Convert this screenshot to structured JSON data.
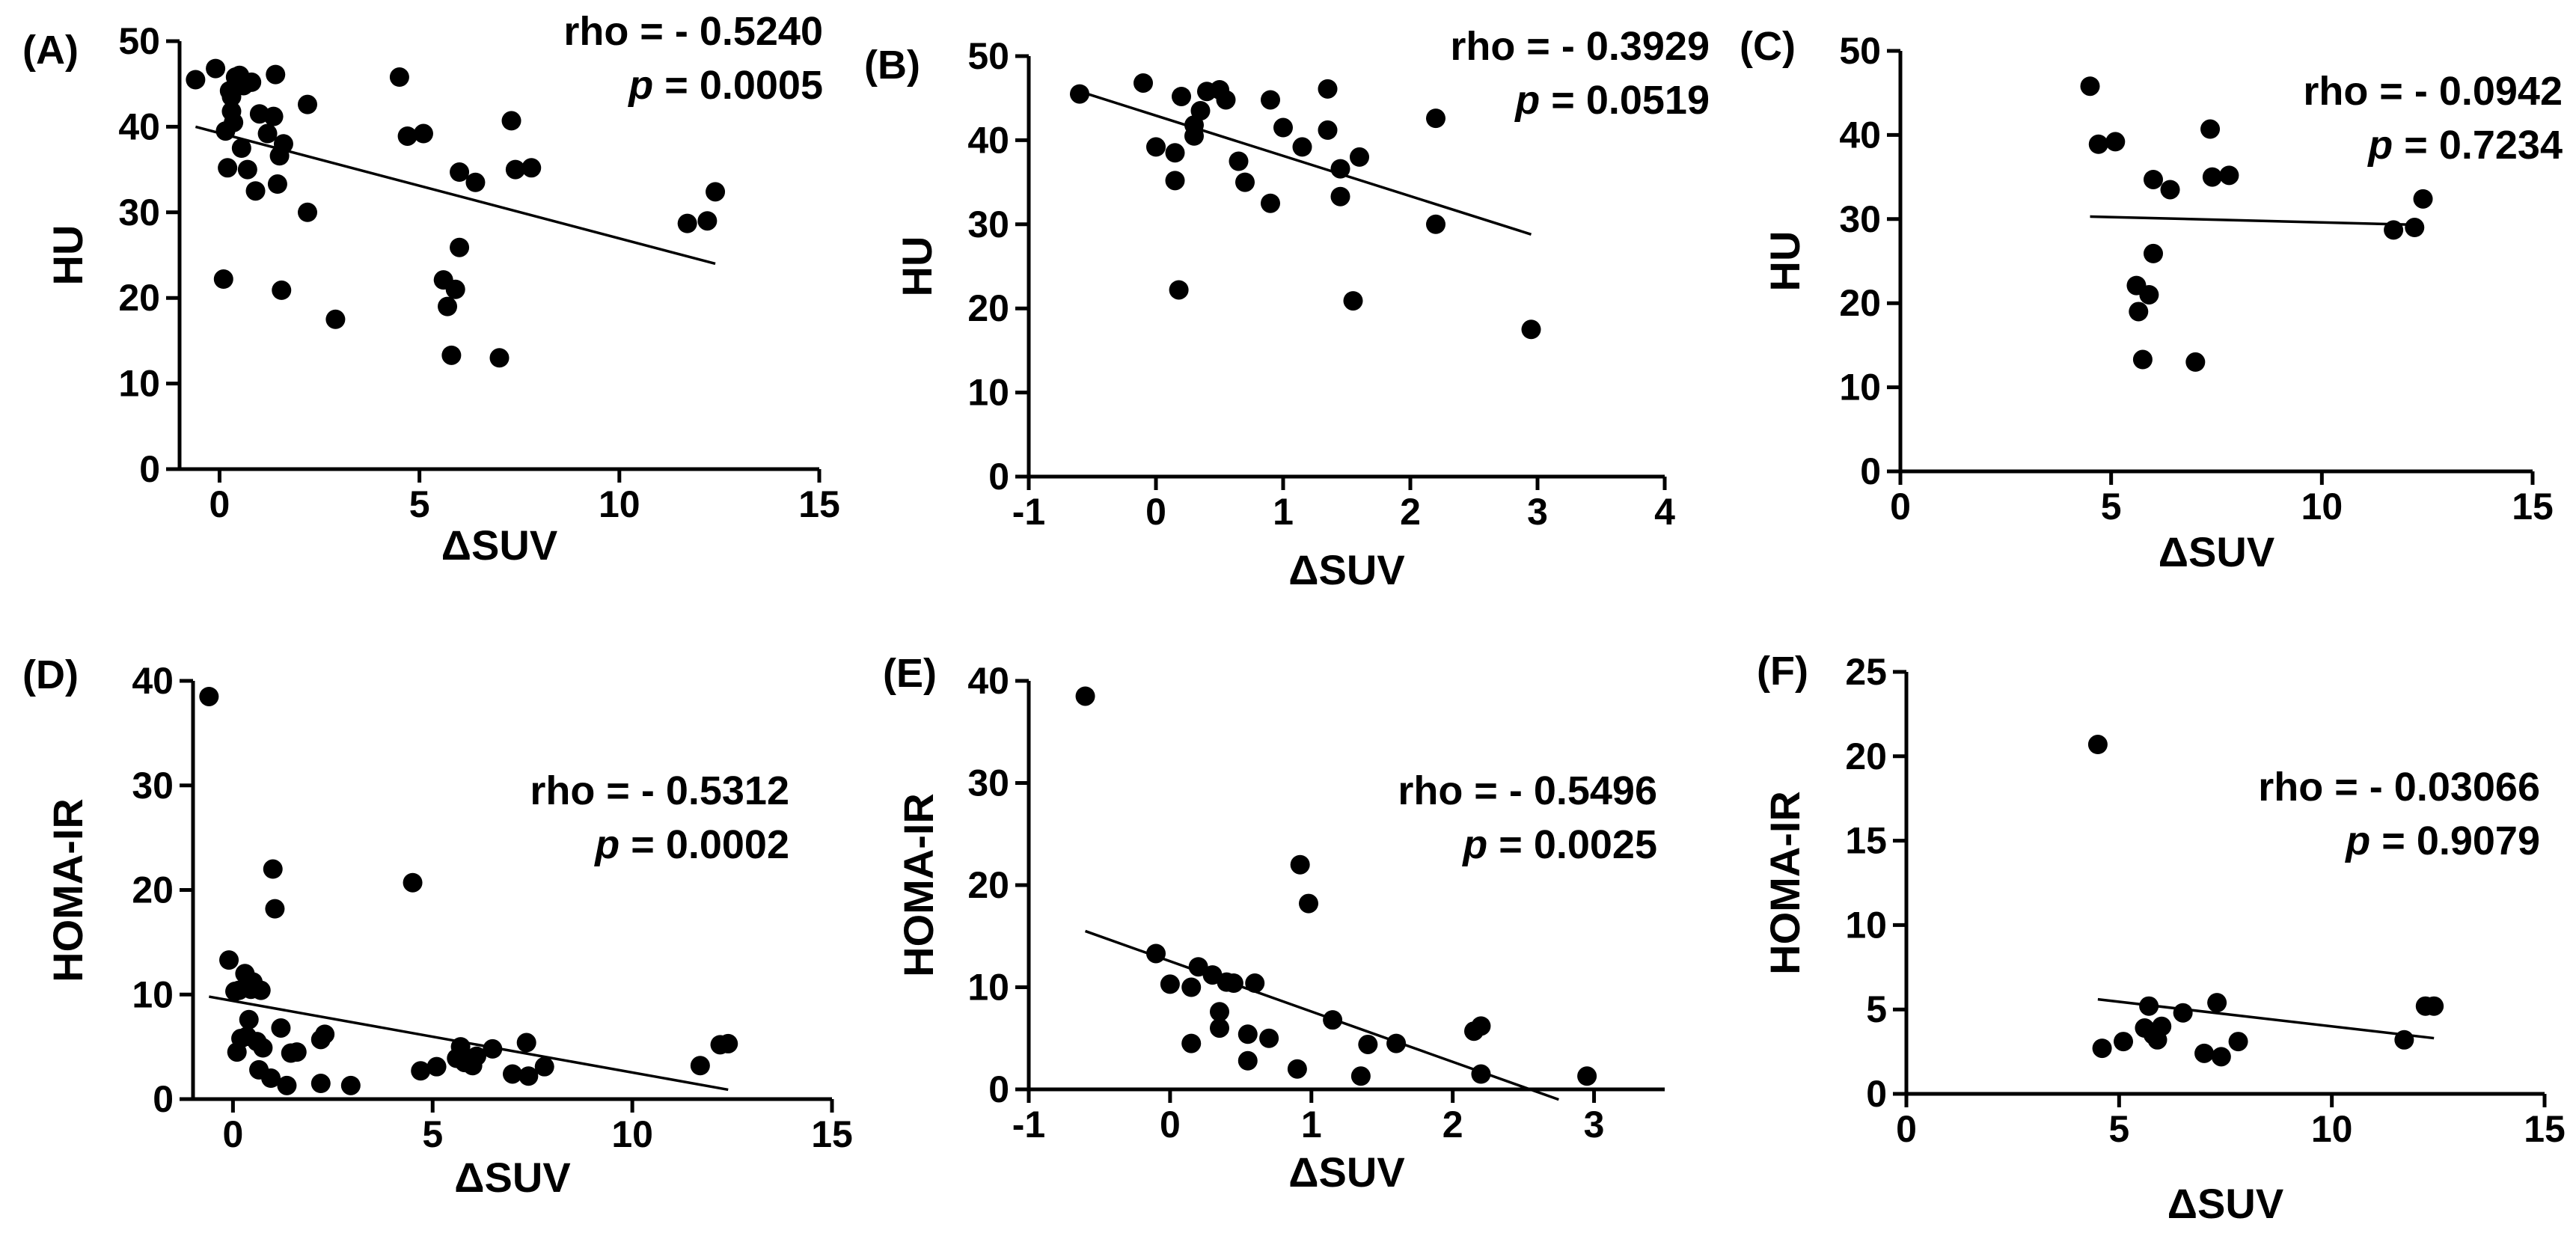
{
  "figure": {
    "colors": {
      "ink": "#000000",
      "background": "#ffffff"
    }
  },
  "chart_data": [
    {
      "panel": "(A)",
      "type": "scatter",
      "xlabel": "ΔSUV",
      "ylabel": "HU",
      "xlim": [
        -1,
        15
      ],
      "ylim": [
        0,
        50
      ],
      "xticks": [
        0,
        5,
        10,
        15
      ],
      "yticks": [
        0,
        10,
        20,
        30,
        40,
        50
      ],
      "stats": [
        "rho = - 0.5240",
        "p = 0.0005"
      ],
      "points": [
        [
          -0.6,
          45.5
        ],
        [
          -0.1,
          46.8
        ],
        [
          0.1,
          22.2
        ],
        [
          0.15,
          39.5
        ],
        [
          0.2,
          35.2
        ],
        [
          0.25,
          44.2
        ],
        [
          0.3,
          43.5
        ],
        [
          0.3,
          41.8
        ],
        [
          0.35,
          40.5
        ],
        [
          0.4,
          45.8
        ],
        [
          0.5,
          46.0
        ],
        [
          0.55,
          37.5
        ],
        [
          0.6,
          44.8
        ],
        [
          0.7,
          35.0
        ],
        [
          0.8,
          45.2
        ],
        [
          0.9,
          32.5
        ],
        [
          1.0,
          41.5
        ],
        [
          1.2,
          39.2
        ],
        [
          1.35,
          41.2
        ],
        [
          1.4,
          46.1
        ],
        [
          1.45,
          33.3
        ],
        [
          1.5,
          36.6
        ],
        [
          1.55,
          20.9
        ],
        [
          1.6,
          38.0
        ],
        [
          2.2,
          30.0
        ],
        [
          2.2,
          42.6
        ],
        [
          2.9,
          17.5
        ],
        [
          4.5,
          45.8
        ],
        [
          4.7,
          38.9
        ],
        [
          5.1,
          39.2
        ],
        [
          5.6,
          22.1
        ],
        [
          5.7,
          19.0
        ],
        [
          5.8,
          13.3
        ],
        [
          5.9,
          21.0
        ],
        [
          6.0,
          25.9
        ],
        [
          6.0,
          34.7
        ],
        [
          6.4,
          33.5
        ],
        [
          7.0,
          13.0
        ],
        [
          7.3,
          40.7
        ],
        [
          7.4,
          35.0
        ],
        [
          7.8,
          35.2
        ],
        [
          11.7,
          28.7
        ],
        [
          12.2,
          29.0
        ],
        [
          12.4,
          32.4
        ]
      ],
      "fit": {
        "x": [
          -0.6,
          12.4
        ],
        "y": [
          40.0,
          24.0
        ]
      }
    },
    {
      "panel": "(B)",
      "type": "scatter",
      "xlabel": "ΔSUV",
      "ylabel": "HU",
      "xlim": [
        -1,
        4
      ],
      "ylim": [
        0,
        50
      ],
      "xticks": [
        -1,
        0,
        1,
        2,
        3,
        4
      ],
      "yticks": [
        0,
        10,
        20,
        30,
        40,
        50
      ],
      "stats": [
        "rho = - 0.3929",
        "p = 0.0519"
      ],
      "points": [
        [
          -0.6,
          45.5
        ],
        [
          -0.1,
          46.8
        ],
        [
          0.0,
          39.2
        ],
        [
          0.15,
          38.5
        ],
        [
          0.15,
          35.2
        ],
        [
          0.18,
          22.2
        ],
        [
          0.2,
          45.2
        ],
        [
          0.3,
          41.8
        ],
        [
          0.3,
          40.5
        ],
        [
          0.35,
          43.5
        ],
        [
          0.4,
          45.8
        ],
        [
          0.5,
          46.0
        ],
        [
          0.55,
          44.8
        ],
        [
          0.65,
          37.5
        ],
        [
          0.7,
          35.0
        ],
        [
          0.9,
          44.8
        ],
        [
          0.9,
          32.5
        ],
        [
          1.0,
          41.5
        ],
        [
          1.15,
          39.2
        ],
        [
          1.35,
          46.1
        ],
        [
          1.35,
          41.2
        ],
        [
          1.45,
          33.3
        ],
        [
          1.45,
          36.6
        ],
        [
          1.55,
          20.9
        ],
        [
          1.6,
          38.0
        ],
        [
          2.2,
          30.0
        ],
        [
          2.2,
          42.6
        ],
        [
          2.95,
          17.5
        ]
      ],
      "fit": {
        "x": [
          -0.6,
          2.95
        ],
        "y": [
          45.8,
          28.8
        ]
      }
    },
    {
      "panel": "(C)",
      "type": "scatter",
      "xlabel": "ΔSUV",
      "ylabel": "HU",
      "xlim": [
        0,
        15
      ],
      "ylim": [
        0,
        50
      ],
      "xticks": [
        0,
        5,
        10,
        15
      ],
      "yticks": [
        0,
        10,
        20,
        30,
        40,
        50
      ],
      "stats": [
        "rho = - 0.0942",
        "p = 0.7234"
      ],
      "points": [
        [
          4.5,
          45.8
        ],
        [
          4.7,
          38.9
        ],
        [
          5.1,
          39.2
        ],
        [
          5.6,
          22.1
        ],
        [
          5.65,
          19.0
        ],
        [
          5.75,
          13.3
        ],
        [
          5.9,
          21.0
        ],
        [
          6.0,
          25.9
        ],
        [
          6.0,
          34.7
        ],
        [
          6.4,
          33.5
        ],
        [
          7.0,
          13.0
        ],
        [
          7.35,
          40.7
        ],
        [
          7.4,
          35.0
        ],
        [
          7.8,
          35.2
        ],
        [
          11.7,
          28.7
        ],
        [
          12.2,
          29.0
        ],
        [
          12.4,
          32.4
        ]
      ],
      "fit": {
        "x": [
          4.5,
          12.4
        ],
        "y": [
          30.3,
          29.3
        ]
      }
    },
    {
      "panel": "(D)",
      "type": "scatter",
      "xlabel": "ΔSUV",
      "ylabel": "HOMA-IR",
      "xlim": [
        -1,
        15
      ],
      "ylim": [
        0,
        40
      ],
      "xticks": [
        0,
        5,
        10,
        15
      ],
      "yticks": [
        0,
        10,
        20,
        30,
        40
      ],
      "stats": [
        "rho = - 0.5312",
        "p = 0.0002"
      ],
      "points": [
        [
          -0.6,
          38.5
        ],
        [
          -0.1,
          13.3
        ],
        [
          0.05,
          10.3
        ],
        [
          0.1,
          4.5
        ],
        [
          0.15,
          10.4
        ],
        [
          0.2,
          5.8
        ],
        [
          0.3,
          12.0
        ],
        [
          0.35,
          6.0
        ],
        [
          0.4,
          7.6
        ],
        [
          0.45,
          10.5
        ],
        [
          0.5,
          11.2
        ],
        [
          0.6,
          5.5
        ],
        [
          0.65,
          2.8
        ],
        [
          0.7,
          10.4
        ],
        [
          0.75,
          4.9
        ],
        [
          0.95,
          2.0
        ],
        [
          1.0,
          22.0
        ],
        [
          1.05,
          18.2
        ],
        [
          1.2,
          6.8
        ],
        [
          1.35,
          1.3
        ],
        [
          1.45,
          4.4
        ],
        [
          1.6,
          4.5
        ],
        [
          2.2,
          5.7
        ],
        [
          2.2,
          1.5
        ],
        [
          2.3,
          6.2
        ],
        [
          2.95,
          1.3
        ],
        [
          4.5,
          20.7
        ],
        [
          4.7,
          2.7
        ],
        [
          5.1,
          3.1
        ],
        [
          5.6,
          3.9
        ],
        [
          5.7,
          5.0
        ],
        [
          5.8,
          3.5
        ],
        [
          6.0,
          3.2
        ],
        [
          6.1,
          4.1
        ],
        [
          6.5,
          4.8
        ],
        [
          7.0,
          2.4
        ],
        [
          7.35,
          5.4
        ],
        [
          7.4,
          2.2
        ],
        [
          7.8,
          3.1
        ],
        [
          11.7,
          3.2
        ],
        [
          12.2,
          5.2
        ],
        [
          12.4,
          5.3
        ]
      ],
      "fit": {
        "x": [
          -0.6,
          12.4
        ],
        "y": [
          9.8,
          0.9
        ]
      }
    },
    {
      "panel": "(E)",
      "type": "scatter",
      "xlabel": "ΔSUV",
      "ylabel": "HOMA-IR",
      "xlim": [
        -1,
        3.5
      ],
      "ylim": [
        0,
        40
      ],
      "xticks": [
        -1,
        0,
        1,
        2,
        3
      ],
      "yticks": [
        0,
        10,
        20,
        30,
        40
      ],
      "stats": [
        "rho = - 0.5496",
        "p = 0.0025"
      ],
      "points": [
        [
          -0.6,
          38.5
        ],
        [
          -0.1,
          13.3
        ],
        [
          0.0,
          10.3
        ],
        [
          0.15,
          4.5
        ],
        [
          0.15,
          10.0
        ],
        [
          0.2,
          12.0
        ],
        [
          0.3,
          11.2
        ],
        [
          0.35,
          6.0
        ],
        [
          0.35,
          7.6
        ],
        [
          0.4,
          10.5
        ],
        [
          0.45,
          10.4
        ],
        [
          0.55,
          5.4
        ],
        [
          0.55,
          2.8
        ],
        [
          0.6,
          10.4
        ],
        [
          0.7,
          5.0
        ],
        [
          0.9,
          2.0
        ],
        [
          0.92,
          22.0
        ],
        [
          0.98,
          18.2
        ],
        [
          1.15,
          6.8
        ],
        [
          1.35,
          1.3
        ],
        [
          1.4,
          4.4
        ],
        [
          1.6,
          4.5
        ],
        [
          2.15,
          5.7
        ],
        [
          2.2,
          6.2
        ],
        [
          2.2,
          1.5
        ],
        [
          2.95,
          1.3
        ]
      ],
      "fit": {
        "x": [
          -0.6,
          2.75
        ],
        "y": [
          15.5,
          -1.0
        ]
      }
    },
    {
      "panel": "(F)",
      "type": "scatter",
      "xlabel": "ΔSUV",
      "ylabel": "HOMA-IR",
      "xlim": [
        0,
        15
      ],
      "ylim": [
        0,
        25
      ],
      "xticks": [
        0,
        5,
        10,
        15
      ],
      "yticks": [
        0,
        5,
        10,
        15,
        20,
        25
      ],
      "stats": [
        "rho = - 0.03066",
        "p = 0.9079"
      ],
      "points": [
        [
          4.5,
          20.7
        ],
        [
          4.6,
          2.7
        ],
        [
          5.1,
          3.1
        ],
        [
          5.6,
          3.9
        ],
        [
          5.7,
          5.2
        ],
        [
          5.8,
          3.5
        ],
        [
          5.9,
          3.2
        ],
        [
          6.0,
          4.0
        ],
        [
          6.5,
          4.8
        ],
        [
          7.0,
          2.4
        ],
        [
          7.3,
          5.4
        ],
        [
          7.4,
          2.2
        ],
        [
          7.8,
          3.1
        ],
        [
          11.7,
          3.2
        ],
        [
          12.2,
          5.2
        ],
        [
          12.4,
          5.2
        ]
      ],
      "fit": {
        "x": [
          4.5,
          12.4
        ],
        "y": [
          5.6,
          3.3
        ]
      }
    }
  ]
}
